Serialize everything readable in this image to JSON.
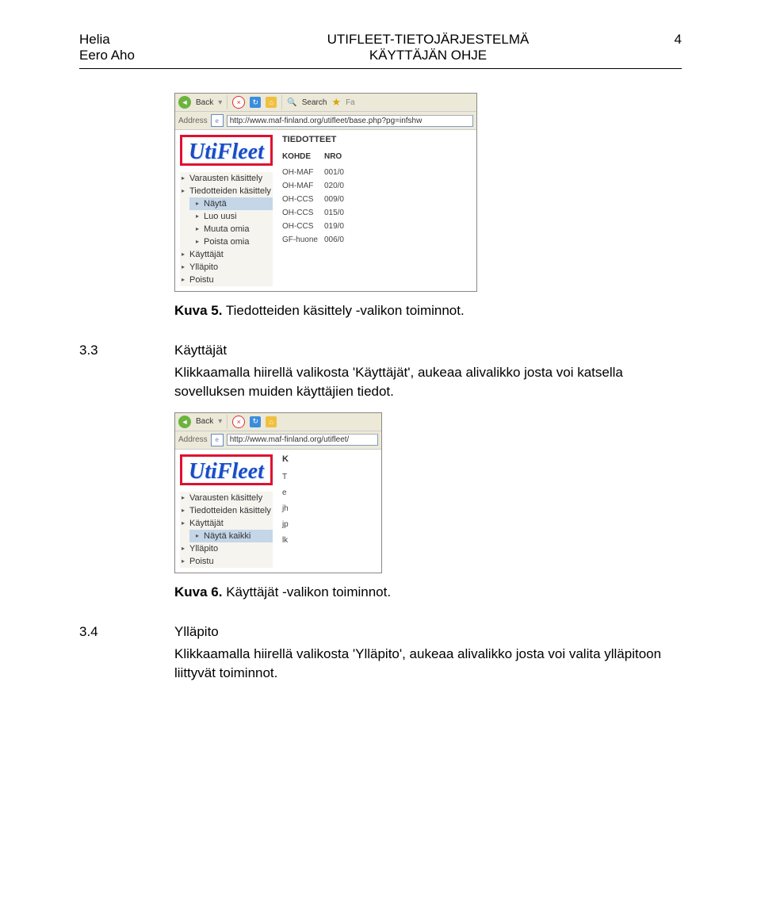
{
  "header": {
    "left_line1": "Helia",
    "left_line2": "Eero Aho",
    "center_line1": "UTIFLEET-TIETOJÄRJESTELMÄ",
    "center_line2": "KÄYTTÄJÄN OHJE",
    "page_number": "4"
  },
  "caption1": {
    "bold": "Kuva 5.",
    "rest": " Tiedotteiden käsittely -valikon toiminnot."
  },
  "section33": {
    "num": "3.3",
    "title": "Käyttäjät",
    "body": "Klikkaamalla hiirellä valikosta 'Käyttäjät', aukeaa alivalikko josta voi katsella sovelluksen muiden käyttäjien tiedot."
  },
  "caption2": {
    "bold": "Kuva 6.",
    "rest": " Käyttäjät -valikon toiminnot."
  },
  "section34": {
    "num": "3.4",
    "title": "Ylläpito",
    "body": "Klikkaamalla hiirellä valikosta 'Ylläpito', aukeaa alivalikko josta voi valita ylläpitoon liittyvät toiminnot."
  },
  "screenshot1": {
    "back_label": "Back",
    "search_label": "Search",
    "url": "http://www.maf-finland.org/utifleet/base.php?pg=infshw",
    "address_label": "Address",
    "logo": "UtiFleet",
    "menu": {
      "items": [
        {
          "label": "Varausten käsittely",
          "type": "top"
        },
        {
          "label": "Tiedotteiden käsittely",
          "type": "top",
          "expanded": true
        },
        {
          "label": "Näytä",
          "type": "sub",
          "selected": true
        },
        {
          "label": "Luo uusi",
          "type": "sub"
        },
        {
          "label": "Muuta omia",
          "type": "sub"
        },
        {
          "label": "Poista omia",
          "type": "sub"
        },
        {
          "label": "Käyttäjät",
          "type": "top"
        },
        {
          "label": "Ylläpito",
          "type": "top"
        },
        {
          "label": "Poistu",
          "type": "top"
        }
      ]
    },
    "data_title": "TIEDOTTEET",
    "columns": [
      "KOHDE",
      "NRO"
    ],
    "rows": [
      [
        "OH-MAF",
        "001/0"
      ],
      [
        "OH-MAF",
        "020/0"
      ],
      [
        "OH-CCS",
        "009/0"
      ],
      [
        "OH-CCS",
        "015/0"
      ],
      [
        "OH-CCS",
        "019/0"
      ],
      [
        "GF-huone",
        "006/0"
      ]
    ]
  },
  "screenshot2": {
    "back_label": "Back",
    "url": "http://www.maf-finland.org/utifleet/",
    "address_label": "Address",
    "logo": "UtiFleet",
    "menu": {
      "items": [
        {
          "label": "Varausten käsittely",
          "type": "top"
        },
        {
          "label": "Tiedotteiden käsittely",
          "type": "top"
        },
        {
          "label": "Käyttäjät",
          "type": "top",
          "expanded": true
        },
        {
          "label": "Näytä kaikki",
          "type": "sub",
          "selected": true
        },
        {
          "label": "Ylläpito",
          "type": "top"
        },
        {
          "label": "Poistu",
          "type": "top"
        }
      ]
    },
    "data_title": "K",
    "rows_single": [
      "T",
      "e",
      "jh",
      "jp",
      "lk"
    ]
  }
}
